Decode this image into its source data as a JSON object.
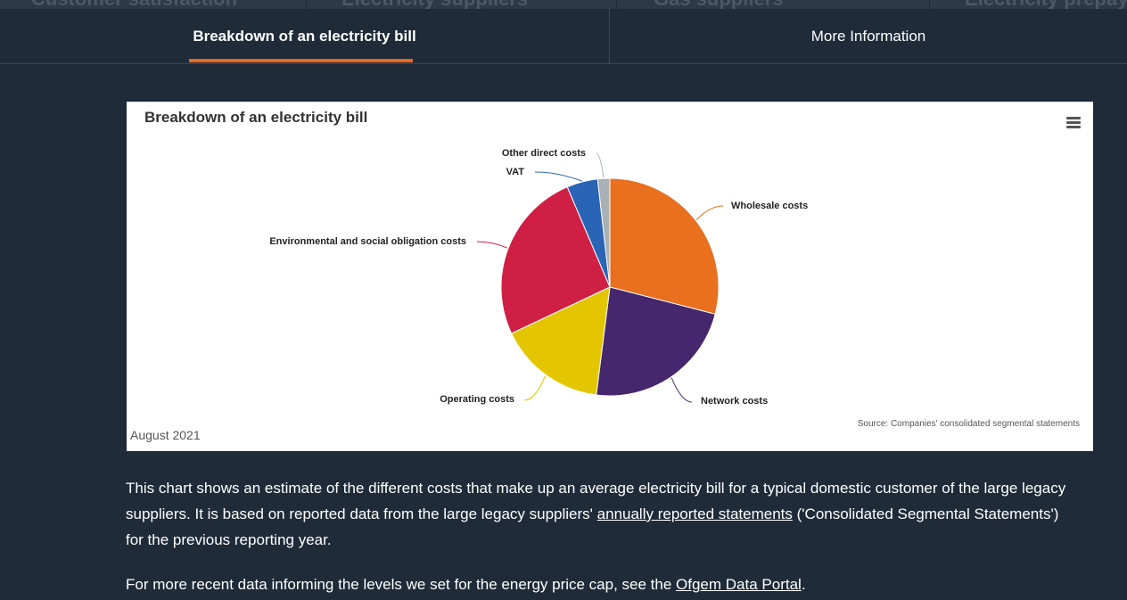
{
  "top_nav": {
    "items": [
      "Customer satisfaction",
      "Electricity suppliers",
      "Gas suppliers",
      "Electricity prepay"
    ]
  },
  "tabs": [
    {
      "label": "Breakdown of an electricity bill",
      "active": true
    },
    {
      "label": "More Information",
      "active": false
    }
  ],
  "chart_data": {
    "type": "pie",
    "title": "Breakdown of an electricity bill",
    "slices": [
      {
        "label": "Wholesale costs",
        "value": 29.0,
        "color": "#e8701f"
      },
      {
        "label": "Network costs",
        "value": 23.0,
        "color": "#46266c"
      },
      {
        "label": "Operating costs",
        "value": 16.0,
        "color": "#e3c600"
      },
      {
        "label": "Environmental and social obligation costs",
        "value": 25.6,
        "color": "#cf1f45"
      },
      {
        "label": "VAT",
        "value": 4.6,
        "color": "#2a64b5"
      },
      {
        "label": "Other direct costs",
        "value": 1.8,
        "color": "#a9b0b6"
      }
    ],
    "legend": "none",
    "date_label": "August 2021",
    "source": "Source: Companies' consolidated segmental statements"
  },
  "content": {
    "p1_before": "This chart shows an estimate of the different costs that make up an average electricity bill for a typical domestic customer of the large legacy suppliers. It is based on reported data from the large legacy suppliers' ",
    "p1_link": "annually reported statements",
    "p1_after": " ('Consolidated Segmental Statements') for the previous reporting year.",
    "p2_before": "For more recent data informing the levels we set for the energy price cap, see the ",
    "p2_link": "Ofgem Data Portal",
    "p2_after": "."
  }
}
